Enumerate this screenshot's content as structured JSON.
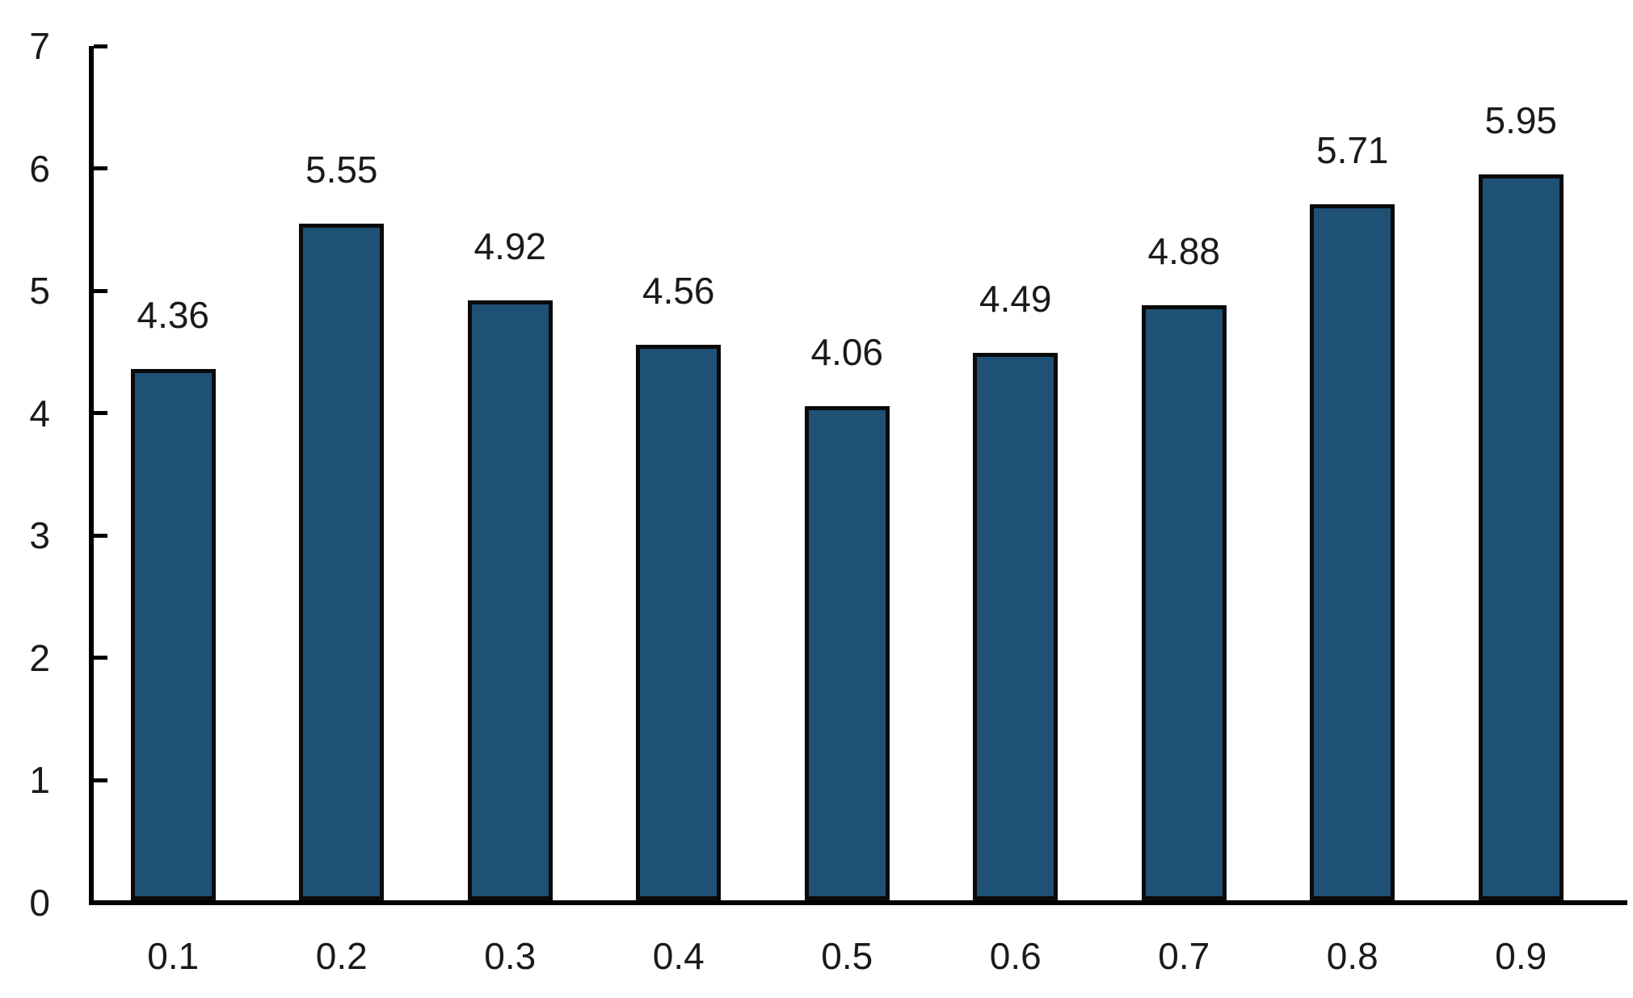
{
  "chart_data": {
    "type": "bar",
    "title": "",
    "xlabel": "",
    "ylabel": "",
    "categories": [
      "0.1",
      "0.2",
      "0.3",
      "0.4",
      "0.5",
      "0.6",
      "0.7",
      "0.8",
      "0.9"
    ],
    "values": [
      4.36,
      5.55,
      4.92,
      4.56,
      4.06,
      4.49,
      4.88,
      5.71,
      5.95
    ],
    "data_labels": [
      "4.36",
      "5.55",
      "4.92",
      "4.56",
      "4.06",
      "4.49",
      "4.88",
      "5.71",
      "5.95"
    ],
    "y_ticks": [
      0,
      1,
      2,
      3,
      4,
      5,
      6,
      7
    ],
    "y_tick_labels": [
      "0",
      "1",
      "2",
      "3",
      "4",
      "5",
      "6",
      "7"
    ],
    "ylim": [
      0,
      7
    ],
    "grid": false,
    "legend": "none",
    "bar_color": "#1F5075",
    "bar_border_color": "#0a0a0a",
    "axis_color": "#000000",
    "text_color": "#1a1a1a"
  }
}
